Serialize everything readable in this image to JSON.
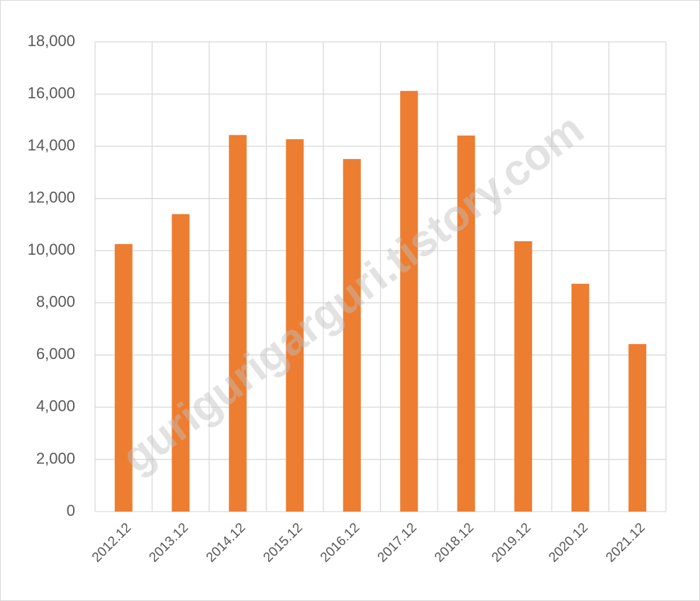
{
  "chart_data": {
    "type": "bar",
    "categories": [
      "2012.12",
      "2013.12",
      "2014.12",
      "2015.12",
      "2016.12",
      "2017.12",
      "2018.12",
      "2019.12",
      "2020.12",
      "2021.12"
    ],
    "values": [
      10250,
      11400,
      14430,
      14270,
      13510,
      16120,
      14410,
      10360,
      8730,
      6420
    ],
    "color": "#ed7d31",
    "ylim": [
      0,
      18000
    ],
    "yticks": [
      0,
      {
        "value": 2000,
        "label": "2,000"
      },
      {
        "value": 4000,
        "label": "4,000"
      },
      {
        "value": 6000,
        "label": "6,000"
      },
      {
        "value": 8000,
        "label": "8,000"
      },
      {
        "value": 10000,
        "label": "10,000"
      },
      {
        "value": 12000,
        "label": "12,000"
      },
      {
        "value": 14000,
        "label": "14,000"
      },
      {
        "value": 16000,
        "label": "16,000"
      },
      {
        "value": 18000,
        "label": "18,000"
      }
    ],
    "grid": true,
    "watermark": "gurigurigarguri.tistory.com"
  }
}
